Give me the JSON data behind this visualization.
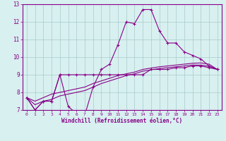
{
  "title": "",
  "xlabel": "Windchill (Refroidissement éolien,°C)",
  "background_color": "#d8f0f0",
  "grid_color": "#aacaca",
  "line_color": "#880088",
  "axis_color": "#880088",
  "x_hours": [
    0,
    1,
    2,
    3,
    4,
    5,
    6,
    7,
    8,
    9,
    10,
    11,
    12,
    13,
    14,
    15,
    16,
    17,
    18,
    19,
    20,
    21,
    22,
    23
  ],
  "main_line": [
    7.7,
    7.0,
    7.5,
    7.5,
    9.0,
    7.2,
    6.8,
    6.7,
    8.3,
    9.3,
    9.6,
    10.7,
    12.0,
    11.9,
    12.7,
    12.7,
    11.5,
    10.8,
    10.8,
    10.3,
    10.1,
    9.9,
    9.5,
    9.3
  ],
  "line2": [
    7.7,
    7.0,
    7.5,
    7.5,
    9.0,
    9.0,
    9.0,
    9.0,
    9.0,
    9.0,
    9.0,
    9.0,
    9.0,
    9.0,
    9.0,
    9.3,
    9.3,
    9.3,
    9.4,
    9.4,
    9.5,
    9.5,
    9.4,
    9.3
  ],
  "line3": [
    7.7,
    7.5,
    7.7,
    7.9,
    8.0,
    8.1,
    8.2,
    8.3,
    8.5,
    8.65,
    8.8,
    8.95,
    9.05,
    9.15,
    9.3,
    9.38,
    9.45,
    9.5,
    9.55,
    9.6,
    9.65,
    9.67,
    9.6,
    9.3
  ],
  "line4": [
    7.7,
    7.3,
    7.5,
    7.6,
    7.8,
    7.9,
    8.0,
    8.1,
    8.3,
    8.5,
    8.65,
    8.8,
    8.95,
    9.05,
    9.2,
    9.28,
    9.35,
    9.4,
    9.45,
    9.5,
    9.55,
    9.55,
    9.48,
    9.3
  ],
  "ylim": [
    7,
    13
  ],
  "yticks": [
    7,
    8,
    9,
    10,
    11,
    12,
    13
  ],
  "xtick_labels": [
    "0",
    "1",
    "2",
    "3",
    "4",
    "5",
    "6",
    "7",
    "8",
    "9",
    "10",
    "11",
    "12",
    "13",
    "14",
    "15",
    "16",
    "17",
    "18",
    "19",
    "20",
    "21",
    "22",
    "23"
  ]
}
